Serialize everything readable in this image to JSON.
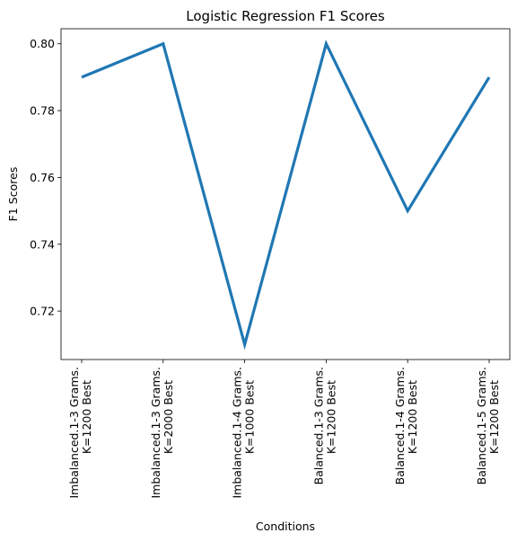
{
  "chart_data": {
    "type": "line",
    "title": "Logistic Regression F1 Scores",
    "xlabel": "Conditions",
    "ylabel": "F1 Scores",
    "categories": [
      [
        "Imbalanced.1-3 Grams.",
        "K=1200 Best"
      ],
      [
        "Imbalanced.1-3 Grams.",
        "K=2000 Best"
      ],
      [
        "Imbalanced.1-4 Grams.",
        "K=1000 Best"
      ],
      [
        "Balanced.1-3 Grams.",
        "K=1200 Best"
      ],
      [
        "Balanced.1-4 Grams.",
        "K=1200 Best"
      ],
      [
        "Balanced.1-5 Grams.",
        "K=1200 Best"
      ]
    ],
    "series": [
      {
        "values": [
          0.79,
          0.8,
          0.71,
          0.8,
          0.75,
          0.79
        ],
        "color": "#1f77b4"
      }
    ],
    "yticks": [
      "0.72",
      "0.74",
      "0.76",
      "0.78",
      "0.80"
    ],
    "ylim": [
      0.7055,
      0.8045
    ],
    "grid": false
  }
}
